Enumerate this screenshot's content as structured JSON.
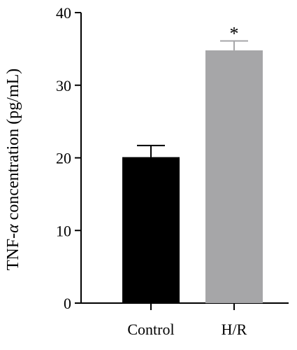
{
  "chart_data": {
    "type": "bar",
    "categories": [
      "Control",
      "H/R"
    ],
    "values": [
      20.1,
      34.8
    ],
    "errors": [
      1.6,
      1.3
    ],
    "colors": [
      "#000000",
      "#a6a6a8"
    ],
    "ylabel_prefix": "TNF-",
    "ylabel_symbol": "α",
    "ylabel_suffix": " concentration (pg/mL)",
    "ylim": [
      0,
      40
    ],
    "yticks": [
      "0",
      "10",
      "20",
      "30",
      "40"
    ],
    "annotations": [
      {
        "category": "H/R",
        "text": "*"
      }
    ],
    "grid": false
  }
}
